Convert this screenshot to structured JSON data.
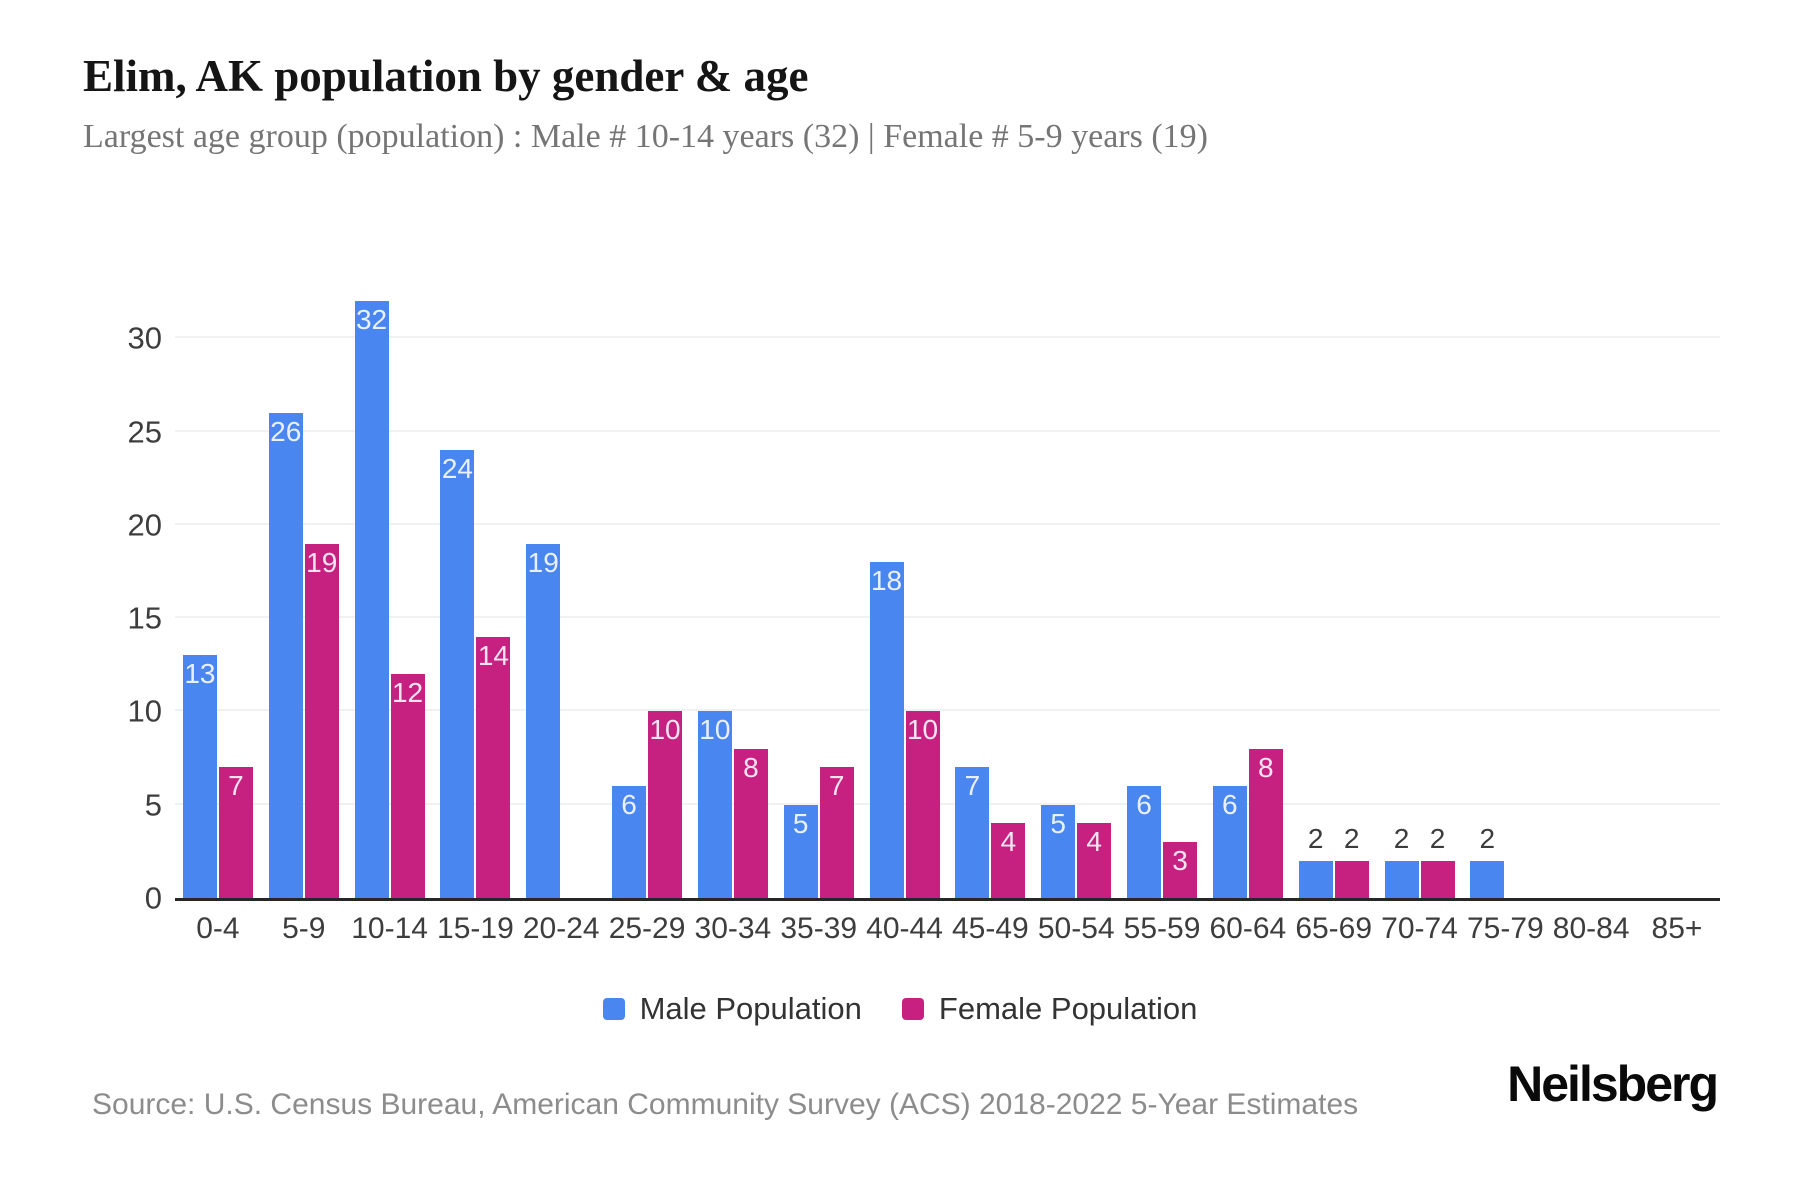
{
  "header": {
    "title": "Elim, AK population by gender & age",
    "subtitle": "Largest age group (population) : Male # 10-14 years (32) | Female # 5-9 years (19)"
  },
  "chart_data": {
    "type": "bar",
    "title": "Elim, AK population by gender & age",
    "subtitle": "Largest age group (population) : Male # 10-14 years (32) | Female # 5-9 years (19)",
    "categories": [
      "0-4",
      "5-9",
      "10-14",
      "15-19",
      "20-24",
      "25-29",
      "30-34",
      "35-39",
      "40-44",
      "45-49",
      "50-54",
      "55-59",
      "60-64",
      "65-69",
      "70-74",
      "75-79",
      "80-84",
      "85+"
    ],
    "series": [
      {
        "name": "Male Population",
        "color": "#4A86EF",
        "values": [
          13,
          26,
          32,
          24,
          19,
          6,
          10,
          5,
          18,
          7,
          5,
          6,
          6,
          2,
          2,
          2,
          0,
          0
        ]
      },
      {
        "name": "Female Population",
        "color": "#C62181",
        "values": [
          7,
          19,
          12,
          14,
          0,
          10,
          8,
          7,
          10,
          4,
          4,
          3,
          8,
          2,
          2,
          0,
          0,
          0
        ]
      }
    ],
    "xlabel": "",
    "ylabel": "",
    "yticks": [
      0,
      5,
      10,
      15,
      20,
      25,
      30
    ],
    "ylim": [
      0,
      33.5
    ],
    "grid": "horizontal",
    "legend_position": "bottom"
  },
  "legend": {
    "items": [
      {
        "label": "Male Population",
        "color": "#4A86EF"
      },
      {
        "label": "Female Population",
        "color": "#C62181"
      }
    ]
  },
  "footer": {
    "source": "Source: U.S. Census Bureau, American Community Survey (ACS) 2018-2022 5-Year Estimates",
    "brand": "Neilsberg"
  }
}
